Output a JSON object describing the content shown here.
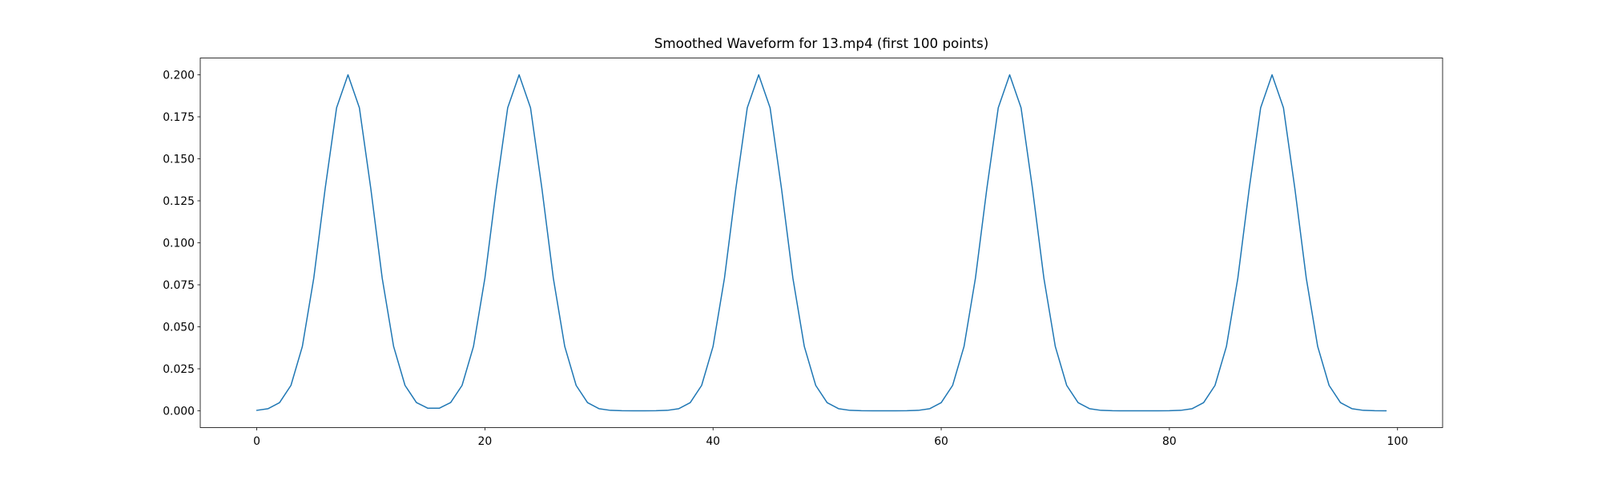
{
  "chart_data": {
    "type": "line",
    "title": "Smoothed Waveform for 13.mp4 (first 100 points)",
    "xlabel": "",
    "ylabel": "",
    "x": [
      0,
      1,
      2,
      3,
      4,
      5,
      6,
      7,
      8,
      9,
      10,
      11,
      12,
      13,
      14,
      15,
      16,
      17,
      18,
      19,
      20,
      21,
      22,
      23,
      24,
      25,
      26,
      27,
      28,
      29,
      30,
      31,
      32,
      33,
      34,
      35,
      36,
      37,
      38,
      39,
      40,
      41,
      42,
      43,
      44,
      45,
      46,
      47,
      48,
      49,
      50,
      51,
      52,
      53,
      54,
      55,
      56,
      57,
      58,
      59,
      60,
      61,
      62,
      63,
      64,
      65,
      66,
      67,
      68,
      69,
      70,
      71,
      72,
      73,
      74,
      75,
      76,
      77,
      78,
      79,
      80,
      81,
      82,
      83,
      84,
      85,
      86,
      87,
      88,
      89,
      90,
      91,
      92,
      93,
      94,
      95,
      96,
      97,
      98,
      99
    ],
    "values": [
      0.00027,
      0.00127,
      0.00485,
      0.01511,
      0.0383,
      0.07893,
      0.1323,
      0.18037,
      0.2,
      0.18037,
      0.1323,
      0.07893,
      0.0383,
      0.01512,
      0.0049,
      0.00154,
      0.00154,
      0.0049,
      0.01512,
      0.0383,
      0.07893,
      0.1323,
      0.18037,
      0.2,
      0.18037,
      0.1323,
      0.07893,
      0.0383,
      0.01511,
      0.00485,
      0.00127,
      0.00027,
      5e-05,
      1e-05,
      1e-05,
      5e-05,
      0.00027,
      0.00127,
      0.00485,
      0.01511,
      0.0383,
      0.07893,
      0.1323,
      0.18037,
      0.2,
      0.18037,
      0.1323,
      0.07893,
      0.0383,
      0.01511,
      0.00485,
      0.00127,
      0.00027,
      5e-05,
      1e-05,
      0,
      1e-05,
      5e-05,
      0.00027,
      0.00127,
      0.00485,
      0.01511,
      0.0383,
      0.07893,
      0.1323,
      0.18037,
      0.2,
      0.18037,
      0.1323,
      0.07893,
      0.0383,
      0.01511,
      0.00485,
      0.00127,
      0.00027,
      5e-05,
      1e-05,
      0,
      0,
      1e-05,
      5e-05,
      0.00027,
      0.00127,
      0.00485,
      0.01511,
      0.0383,
      0.07893,
      0.1323,
      0.18037,
      0.2,
      0.18037,
      0.1323,
      0.07893,
      0.0383,
      0.01511,
      0.00485,
      0.00127,
      0.00027,
      5e-05,
      1e-05
    ],
    "xlim": [
      -4.95,
      103.95
    ],
    "ylim": [
      -0.01,
      0.21
    ],
    "xticks": [
      0,
      20,
      40,
      60,
      80,
      100
    ],
    "xtick_labels": [
      "0",
      "20",
      "40",
      "60",
      "80",
      "100"
    ],
    "yticks": [
      0.0,
      0.025,
      0.05,
      0.075,
      0.1,
      0.125,
      0.15,
      0.175,
      0.2
    ],
    "ytick_labels": [
      "0.000",
      "0.025",
      "0.050",
      "0.075",
      "0.100",
      "0.125",
      "0.150",
      "0.175",
      "0.200"
    ],
    "grid": false,
    "legend": null,
    "line_color": "#1f77b4",
    "spine_color": "#000000",
    "text_color": "#000000",
    "background_color": "#ffffff"
  }
}
